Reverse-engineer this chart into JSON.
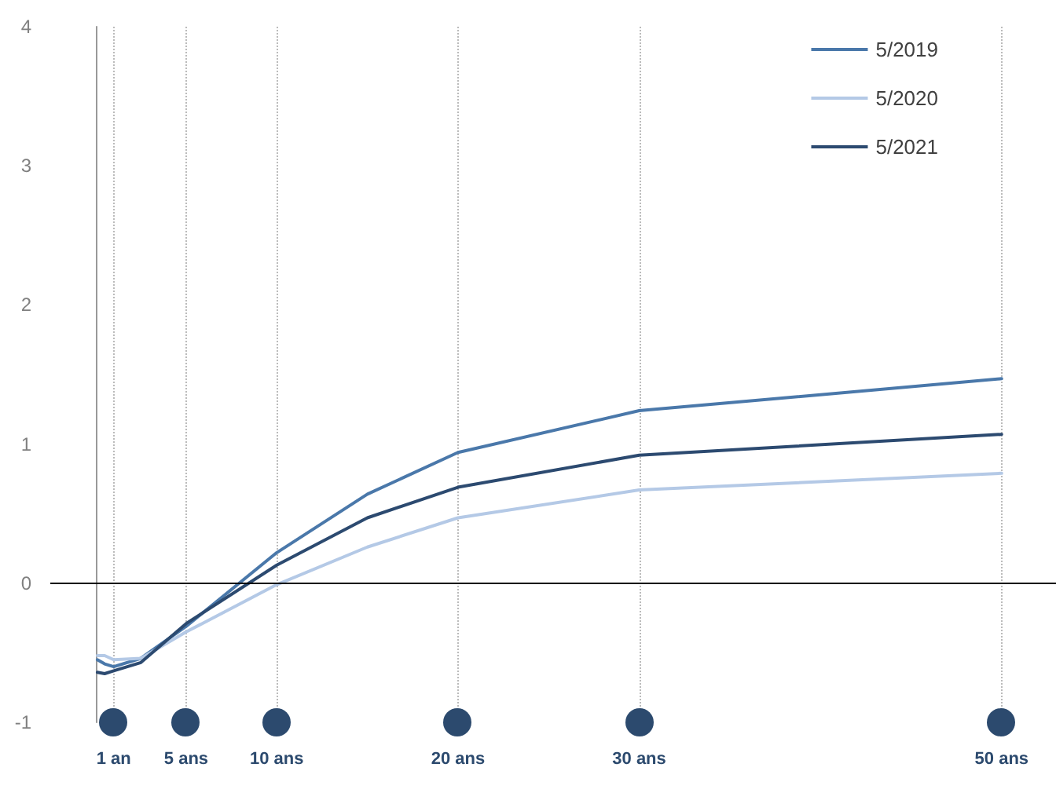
{
  "chart_data": {
    "type": "line",
    "x": [
      0.1,
      0.5,
      1,
      2.5,
      5,
      10,
      15,
      20,
      30,
      50
    ],
    "series": [
      {
        "name": "5/2019",
        "color": "#4a78aa",
        "values": [
          -0.55,
          -0.58,
          -0.6,
          -0.54,
          -0.31,
          0.22,
          0.64,
          0.94,
          1.24,
          1.47
        ]
      },
      {
        "name": "5/2020",
        "color": "#b4c9e6",
        "values": [
          -0.52,
          -0.52,
          -0.55,
          -0.54,
          -0.35,
          -0.01,
          0.26,
          0.47,
          0.67,
          0.79
        ]
      },
      {
        "name": "5/2021",
        "color": "#2c4a70",
        "values": [
          -0.64,
          -0.65,
          -0.63,
          -0.57,
          -0.29,
          0.13,
          0.47,
          0.69,
          0.92,
          1.07
        ]
      }
    ],
    "xlim": [
      -2.5,
      53
    ],
    "xticks": [
      {
        "value": 1,
        "label": "1 an"
      },
      {
        "value": 5,
        "label": "5 ans"
      },
      {
        "value": 10,
        "label": "10 ans"
      },
      {
        "value": 20,
        "label": "20 ans"
      },
      {
        "value": 30,
        "label": "30 ans"
      },
      {
        "value": 50,
        "label": "50 ans"
      }
    ],
    "ylim": [
      -1,
      4
    ],
    "yticks": [
      -1,
      0,
      1,
      2,
      3,
      4
    ],
    "ref_lines": [
      {
        "axis": "y",
        "value": 0,
        "color": "#000000"
      }
    ],
    "grid": "x",
    "legend": "top right",
    "marker": "none",
    "line_style": "solid"
  }
}
